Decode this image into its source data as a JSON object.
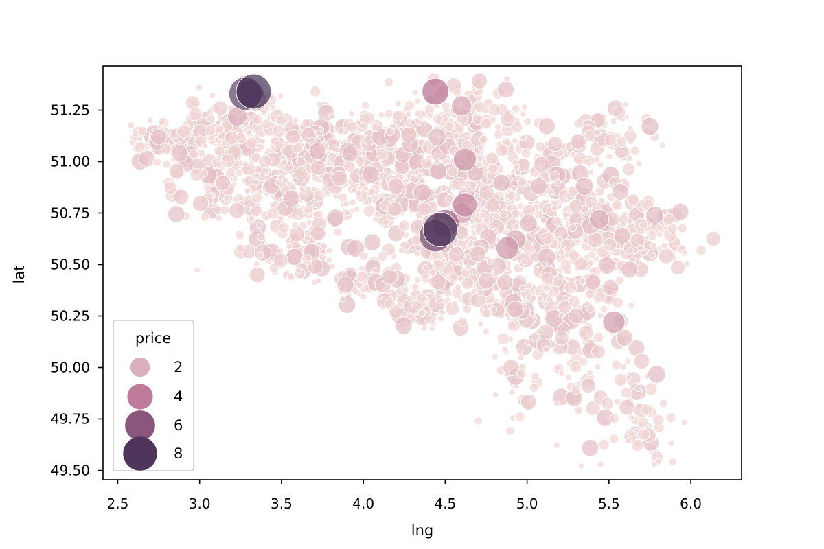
{
  "chart_data": {
    "type": "scatter",
    "title": "",
    "xlabel": "lng",
    "ylabel": "lat",
    "xlim": [
      2.41,
      6.31
    ],
    "ylim": [
      49.455,
      51.465
    ],
    "xticks": [
      "2.5",
      "3.0",
      "3.5",
      "4.0",
      "4.5",
      "5.0",
      "5.5",
      "6.0"
    ],
    "yticks": [
      "49.50",
      "49.75",
      "50.00",
      "50.25",
      "50.50",
      "50.75",
      "51.00",
      "51.25"
    ],
    "grid": false,
    "legend": {
      "title": "price",
      "placement": "lower-left",
      "entries": [
        {
          "label": "2",
          "value": 2
        },
        {
          "label": "4",
          "value": 4
        },
        {
          "label": "6",
          "value": 6
        },
        {
          "label": "8",
          "value": 8
        }
      ]
    },
    "colors": {
      "low": "#f1d6d3",
      "mid": "#b76f92",
      "high": "#402d54"
    },
    "marker_alpha": 0.7,
    "points": [
      {
        "lng": 3.33,
        "lat": 51.34,
        "price": 8.6
      },
      {
        "lng": 3.28,
        "lat": 51.33,
        "price": 7.5
      },
      {
        "lng": 3.31,
        "lat": 51.33,
        "price": 4.8
      },
      {
        "lng": 3.34,
        "lat": 51.3,
        "price": 3.0
      },
      {
        "lng": 3.23,
        "lat": 51.22,
        "price": 2.0
      },
      {
        "lng": 4.44,
        "lat": 51.34,
        "price": 4.5
      },
      {
        "lng": 4.6,
        "lat": 51.27,
        "price": 2.2
      },
      {
        "lng": 4.47,
        "lat": 50.67,
        "price": 8.2
      },
      {
        "lng": 4.44,
        "lat": 50.64,
        "price": 7.0
      },
      {
        "lng": 4.5,
        "lat": 50.7,
        "price": 5.0
      },
      {
        "lng": 4.62,
        "lat": 50.79,
        "price": 3.5
      },
      {
        "lng": 4.6,
        "lat": 50.75,
        "price": 2.5
      },
      {
        "lng": 4.62,
        "lat": 51.01,
        "price": 3.0
      },
      {
        "lng": 4.88,
        "lat": 50.58,
        "price": 3.0
      },
      {
        "lng": 4.93,
        "lat": 50.62,
        "price": 2.2
      },
      {
        "lng": 5.53,
        "lat": 50.22,
        "price": 2.8
      },
      {
        "lng": 5.44,
        "lat": 50.72,
        "price": 2.0
      },
      {
        "lng": 5.78,
        "lat": 50.74,
        "price": 1.6
      },
      {
        "lng": 3.56,
        "lat": 50.82,
        "price": 1.4
      },
      {
        "lng": 3.92,
        "lat": 51.04,
        "price": 1.3
      },
      {
        "lng": 4.2,
        "lat": 50.88,
        "price": 1.2
      },
      {
        "lng": 4.36,
        "lat": 50.85,
        "price": 1.5
      },
      {
        "lng": 5.07,
        "lat": 50.88,
        "price": 1.3
      },
      {
        "lng": 5.35,
        "lat": 50.88,
        "price": 1.6
      },
      {
        "lng": 4.16,
        "lat": 50.44,
        "price": 1.1
      },
      {
        "lng": 4.75,
        "lat": 50.42,
        "price": 1.2
      },
      {
        "lng": 2.75,
        "lat": 51.12,
        "price": 1.2
      },
      {
        "lng": 3.72,
        "lat": 51.05,
        "price": 1.4
      },
      {
        "lng": 5.58,
        "lat": 50.64,
        "price": 1.3
      },
      {
        "lng": 4.87,
        "lat": 51.35,
        "price": 1.3
      },
      {
        "lng": 4.45,
        "lat": 51.12,
        "price": 1.5
      },
      {
        "lng": 4.7,
        "lat": 50.55,
        "price": 1.2
      },
      {
        "lng": 5.7,
        "lat": 50.03,
        "price": 1.1
      },
      {
        "lng": 5.3,
        "lat": 50.25,
        "price": 1.1
      }
    ]
  }
}
